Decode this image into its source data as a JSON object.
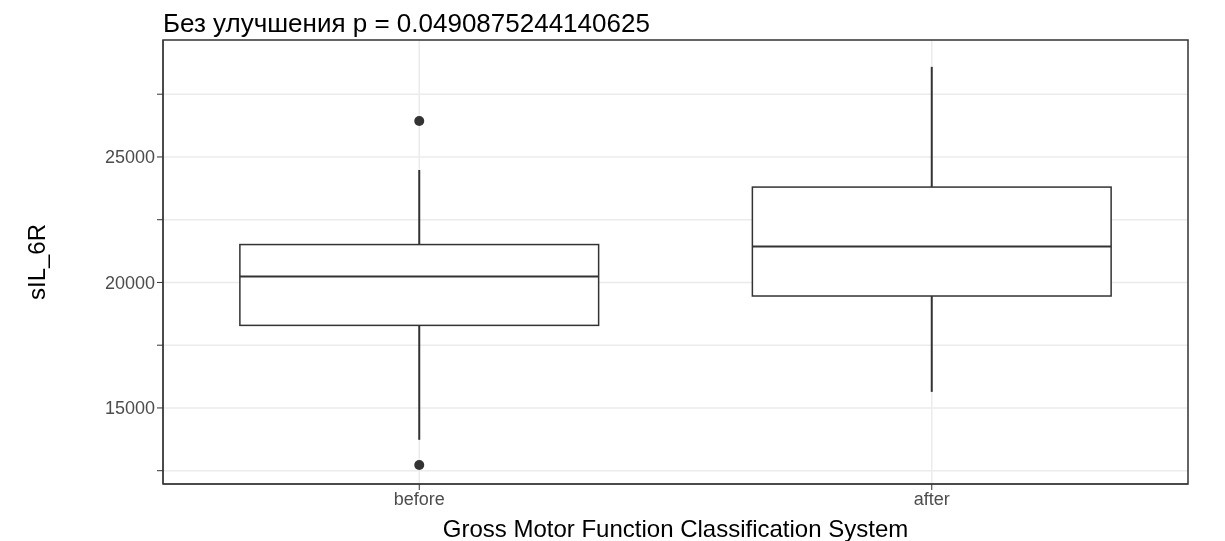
{
  "chart_data": {
    "type": "box",
    "title": "Без улучшения p = 0.0490875244140625",
    "xlabel": "Gross Motor Function Classification System",
    "ylabel": "sIL_6R",
    "categories": [
      "before",
      "after"
    ],
    "boxes": [
      {
        "low": 13730,
        "q1": 18290,
        "median": 20240,
        "q3": 21510,
        "high": 24480,
        "outliers": [
          26430,
          12730
        ]
      },
      {
        "low": 15640,
        "q1": 19460,
        "median": 21430,
        "q3": 23800,
        "high": 28590
      }
    ],
    "color": "#333333",
    "ylim": [
      11970,
      29660
    ],
    "yticks": [
      {
        "value": 12500,
        "label": null
      },
      15000,
      {
        "value": 17500,
        "label": null
      },
      20000,
      {
        "value": 22500,
        "label": null
      },
      25000,
      {
        "value": 27500,
        "label": null
      }
    ],
    "grid": true
  }
}
